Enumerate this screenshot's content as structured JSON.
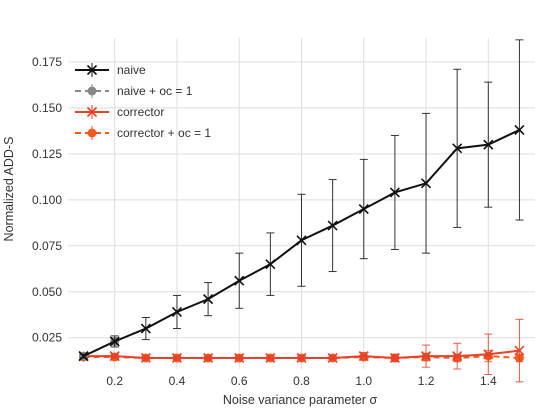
{
  "chart_data": {
    "type": "line",
    "xlabel": "Noise variance parameter σ",
    "ylabel": "Normalized ADD-S",
    "xlim": [
      0.05,
      1.55
    ],
    "ylim": [
      0.008,
      0.188
    ],
    "xticks": [
      0.2,
      0.4,
      0.6,
      0.8,
      1.0,
      1.2,
      1.4
    ],
    "xtick_labels": [
      "0.2",
      "0.4",
      "0.6",
      "0.8",
      "1.0",
      "1.2",
      "1.4"
    ],
    "yticks": [
      0.025,
      0.05,
      0.075,
      0.1,
      0.125,
      0.15,
      0.175
    ],
    "ytick_labels": [
      "0.025",
      "0.050",
      "0.075",
      "0.100",
      "0.125",
      "0.150",
      "0.175"
    ],
    "grid": true,
    "legend_position": "top-left",
    "series": [
      {
        "name": "naive",
        "color": "#111111",
        "linestyle": "solid",
        "marker": "x",
        "x": [
          0.1,
          0.2,
          0.3,
          0.4,
          0.5,
          0.6,
          0.7,
          0.8,
          0.9,
          1.0,
          1.1,
          1.2,
          1.3,
          1.4,
          1.5
        ],
        "y": [
          0.015,
          0.023,
          0.03,
          0.039,
          0.046,
          0.056,
          0.065,
          0.078,
          0.086,
          0.095,
          0.104,
          0.109,
          0.128,
          0.13,
          0.138
        ],
        "err": [
          0.001,
          0.003,
          0.006,
          0.009,
          0.009,
          0.015,
          0.017,
          0.025,
          0.025,
          0.027,
          0.031,
          0.038,
          0.043,
          0.034,
          0.049
        ]
      },
      {
        "name": "naive + oc = 1",
        "color": "#888888",
        "linestyle": "dashed",
        "marker": "circle",
        "x": [
          0.1,
          0.2
        ],
        "y": [
          0.015,
          0.023
        ],
        "err": [
          0.001,
          0.002
        ]
      },
      {
        "name": "corrector",
        "color": "#e8412a",
        "linestyle": "solid",
        "marker": "x",
        "x": [
          0.1,
          0.2,
          0.3,
          0.4,
          0.5,
          0.6,
          0.7,
          0.8,
          0.9,
          1.0,
          1.1,
          1.2,
          1.3,
          1.4,
          1.5
        ],
        "y": [
          0.015,
          0.015,
          0.014,
          0.014,
          0.014,
          0.014,
          0.014,
          0.014,
          0.014,
          0.015,
          0.014,
          0.015,
          0.015,
          0.016,
          0.018
        ],
        "err": [
          0.001,
          0.001,
          0.001,
          0.001,
          0.001,
          0.001,
          0.001,
          0.001,
          0.001,
          0.002,
          0.002,
          0.006,
          0.007,
          0.011,
          0.017
        ]
      },
      {
        "name": "corrector + oc = 1",
        "color": "#f25a1c",
        "linestyle": "dashed",
        "marker": "circle",
        "x": [
          0.1,
          0.2,
          0.3,
          0.4,
          0.5,
          0.6,
          0.7,
          0.8,
          0.9,
          1.0,
          1.1,
          1.2,
          1.3,
          1.4,
          1.5
        ],
        "y": [
          0.0145,
          0.0145,
          0.014,
          0.014,
          0.014,
          0.014,
          0.014,
          0.014,
          0.014,
          0.0145,
          0.014,
          0.0145,
          0.014,
          0.015,
          0.014
        ],
        "err": [
          0.001,
          0.001,
          0.001,
          0.001,
          0.001,
          0.001,
          0.001,
          0.001,
          0.001,
          0.001,
          0.001,
          0.002,
          0.002,
          0.003,
          0.002
        ]
      }
    ]
  }
}
